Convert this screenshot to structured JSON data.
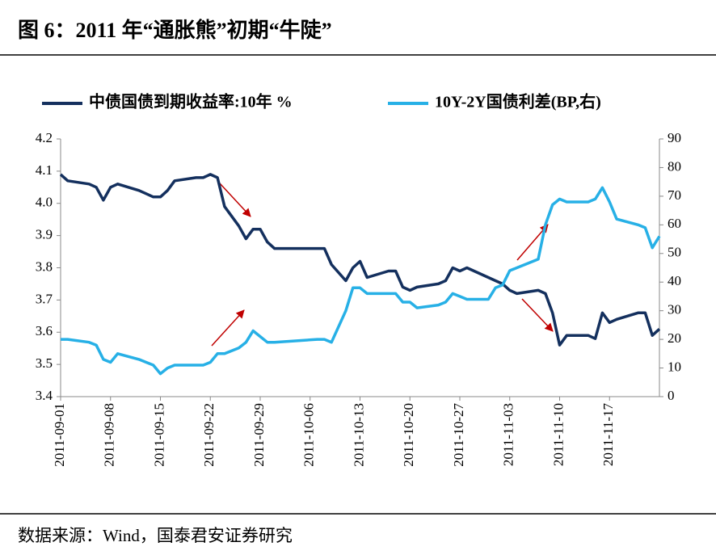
{
  "chart_data": {
    "type": "line",
    "title": "图 6：2011 年“通胀熊”初期“牛陡”",
    "source": "数据来源：Wind，国泰君安证券研究",
    "x": [
      "2011-09-01",
      "2011-09-02",
      "2011-09-05",
      "2011-09-06",
      "2011-09-07",
      "2011-09-08",
      "2011-09-09",
      "2011-09-12",
      "2011-09-13",
      "2011-09-14",
      "2011-09-15",
      "2011-09-16",
      "2011-09-17",
      "2011-09-20",
      "2011-09-21",
      "2011-09-22",
      "2011-09-23",
      "2011-09-24",
      "2011-09-26",
      "2011-09-27",
      "2011-09-28",
      "2011-09-29",
      "2011-09-30",
      "2011-10-01",
      "2011-10-07",
      "2011-10-08",
      "2011-10-09",
      "2011-10-11",
      "2011-10-12",
      "2011-10-13",
      "2011-10-14",
      "2011-10-17",
      "2011-10-18",
      "2011-10-19",
      "2011-10-20",
      "2011-10-21",
      "2011-10-24",
      "2011-10-25",
      "2011-10-26",
      "2011-10-27",
      "2011-10-28",
      "2011-10-31",
      "2011-11-01",
      "2011-11-02",
      "2011-11-03",
      "2011-11-04",
      "2011-11-07",
      "2011-11-08",
      "2011-11-09",
      "2011-11-10",
      "2011-11-11",
      "2011-11-14",
      "2011-11-15",
      "2011-11-16",
      "2011-11-17",
      "2011-11-18",
      "2011-11-21",
      "2011-11-22",
      "2011-11-23",
      "2011-11-24"
    ],
    "xlim": [
      "2011-09-01",
      "2011-11-24"
    ],
    "xticks": [
      "2011-09-01",
      "2011-09-08",
      "2011-09-15",
      "2011-09-22",
      "2011-09-29",
      "2011-10-06",
      "2011-10-13",
      "2011-10-20",
      "2011-10-27",
      "2011-11-03",
      "2011-11-10",
      "2011-11-17"
    ],
    "ylim": [
      3.4,
      4.2
    ],
    "yticks": [
      3.4,
      3.5,
      3.6,
      3.7,
      3.8,
      3.9,
      {
        "value": 4,
        "label": "4.0"
      },
      4.1,
      4.2
    ],
    "y2lim": [
      0,
      90
    ],
    "y2ticks": [
      0,
      10,
      20,
      30,
      40,
      50,
      60,
      70,
      80,
      90
    ],
    "series": [
      {
        "name": "中债国债到期收益率:10年 %",
        "color": "#14305e",
        "values": [
          4.09,
          4.07,
          4.06,
          4.05,
          4.01,
          4.05,
          4.06,
          4.04,
          4.03,
          4.02,
          4.02,
          4.04,
          4.07,
          4.08,
          4.08,
          4.09,
          4.08,
          3.99,
          3.93,
          3.89,
          3.92,
          3.92,
          3.88,
          3.86,
          3.86,
          3.86,
          3.81,
          3.76,
          3.8,
          3.82,
          3.77,
          3.79,
          3.79,
          3.74,
          3.73,
          3.74,
          3.75,
          3.76,
          3.8,
          3.79,
          3.8,
          3.77,
          3.76,
          3.75,
          3.73,
          3.72,
          3.73,
          3.72,
          3.66,
          3.56,
          3.59,
          3.59,
          3.58,
          3.66,
          3.63,
          3.64,
          3.66,
          3.66,
          3.59,
          3.61
        ]
      },
      {
        "name": "10Y-2Y国债利差(BP,右)",
        "color": "#27b0e6",
        "axis": "y2",
        "values": [
          20,
          20,
          19,
          18,
          13,
          12,
          15,
          13,
          12,
          11,
          8,
          10,
          11,
          11,
          11,
          12,
          15,
          15,
          17,
          19,
          23,
          21,
          19,
          19,
          20,
          20,
          19,
          30,
          38,
          38,
          36,
          36,
          36,
          33,
          33,
          31,
          32,
          33,
          36,
          35,
          34,
          34,
          38,
          39,
          44,
          45,
          48,
          60,
          67,
          69,
          68,
          68,
          69,
          73,
          68,
          62,
          60,
          59,
          52,
          56
        ]
      }
    ]
  }
}
